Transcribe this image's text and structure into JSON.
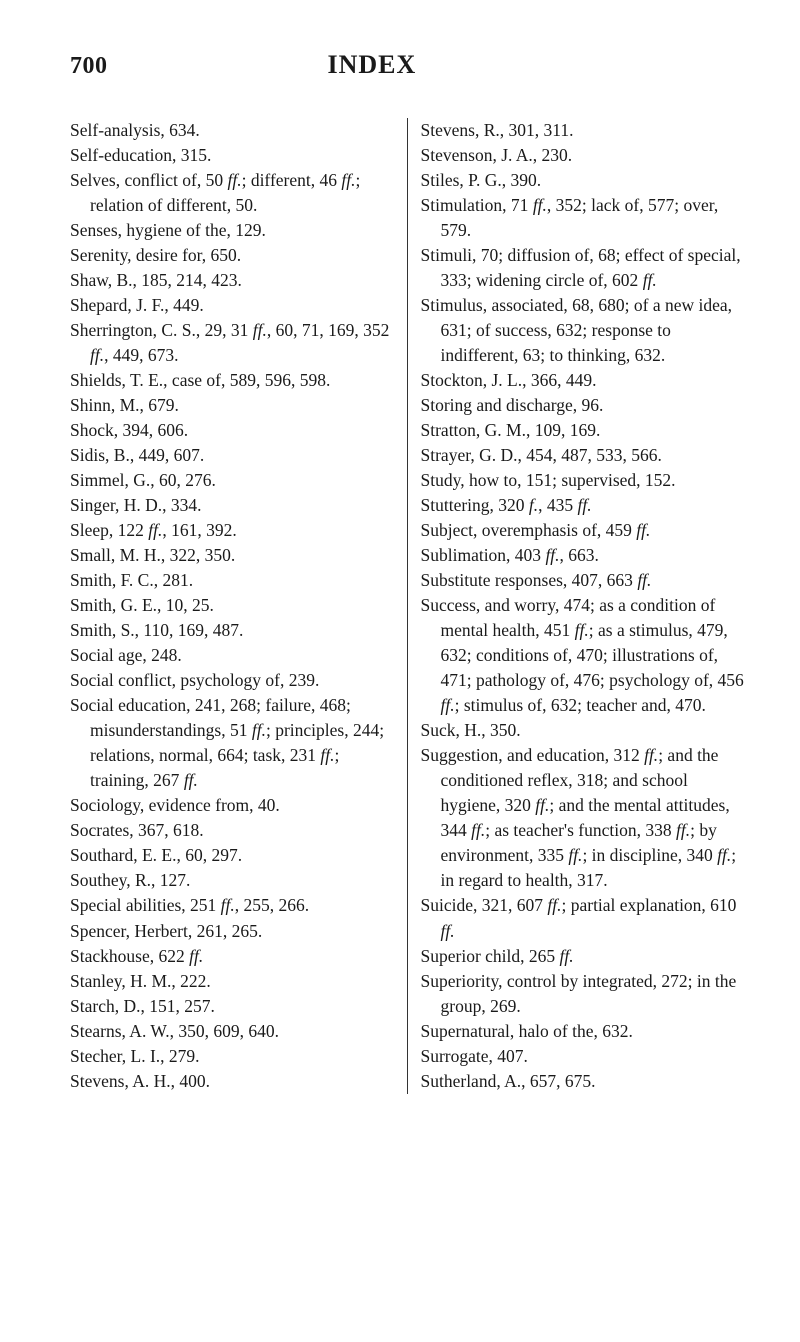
{
  "header": {
    "pageNumber": "700",
    "title": "INDEX"
  },
  "entries": [
    "Self-analysis, 634.",
    "Self-education, 315.",
    "Selves, conflict of, 50 <i>ff.</i>; different, 46 <i>ff.</i>; relation of different, 50.",
    "Senses, hygiene of the, 129.",
    "Serenity, desire for, 650.",
    "Shaw, B., 185, 214, 423.",
    "Shepard, J. F., 449.",
    "Sherrington, C. S., 29, 31 <i>ff.</i>, 60, 71, 169, 352 <i>ff.</i>, 449, 673.",
    "Shields, T. E., case of, 589, 596, 598.",
    "Shinn, M., 679.",
    "Shock, 394, 606.",
    "Sidis, B., 449, 607.",
    "Simmel, G., 60, 276.",
    "Singer, H. D., 334.",
    "Sleep, 122 <i>ff.</i>, 161, 392.",
    "Small, M. H., 322, 350.",
    "Smith, F. C., 281.",
    "Smith, G. E., 10, 25.",
    "Smith, S., 110, 169, 487.",
    "Social age, 248.",
    "Social conflict, psychology of, 239.",
    "Social education, 241, 268; failure, 468; misunderstandings, 51 <i>ff.</i>; principles, 244; relations, normal, 664; task, 231 <i>ff.</i>; training, 267 <i>ff.</i>",
    "Sociology, evidence from, 40.",
    "Socrates, 367, 618.",
    "Southard, E. E., 60, 297.",
    "Southey, R., 127.",
    "Special abilities, 251 <i>ff.</i>, 255, 266.",
    "Spencer, Herbert, 261, 265.",
    "Stackhouse, 622 <i>ff.</i>",
    "Stanley, H. M., 222.",
    "Starch, D., 151, 257.",
    "Stearns, A. W., 350, 609, 640.",
    "Stecher, L. I., 279.",
    "Stevens, A. H., 400.",
    "Stevens, R., 301, 311.",
    "Stevenson, J. A., 230.",
    "Stiles, P. G., 390.",
    "Stimulation, 71 <i>ff.</i>, 352; lack of, 577; over, 579.",
    "Stimuli, 70; diffusion of, 68; effect of special, 333; widening circle of, 602 <i>ff.</i>",
    "Stimulus, associated, 68, 680; of a new idea, 631; of success, 632; response to indifferent, 63; to thinking, 632.",
    "Stockton, J. L., 366, 449.",
    "Storing and discharge, 96.",
    "Stratton, G. M., 109, 169.",
    "Strayer, G. D., 454, 487, 533, 566.",
    "Study, how to, 151; supervised, 152.",
    "Stuttering, 320 <i>f.</i>, 435 <i>ff.</i>",
    "Subject, overemphasis of, 459 <i>ff.</i>",
    "Sublimation, 403 <i>ff.</i>, 663.",
    "Substitute responses, 407, 663 <i>ff.</i>",
    "Success, and worry, 474; as a condition of mental health, 451 <i>ff.</i>; as a stimulus, 479, 632; conditions of, 470; illustrations of, 471; pathology of, 476; psychology of, 456 <i>ff.</i>; stimulus of, 632; teacher and, 470.",
    "Suck, H., 350.",
    "Suggestion, and education, 312 <i>ff.</i>; and the conditioned reflex, 318; and school hygiene, 320 <i>ff.</i>; and the mental attitudes, 344 <i>ff.</i>; as teacher's function, 338 <i>ff.</i>; by environment, 335 <i>ff.</i>; in discipline, 340 <i>ff.</i>; in regard to health, 317.",
    "Suicide, 321, 607 <i>ff.</i>; partial explanation, 610 <i>ff.</i>",
    "Superior child, 265 <i>ff.</i>",
    "Superiority, control by integrated, 272; in the group, 269.",
    "Supernatural, halo of the, 632.",
    "Surrogate, 407.",
    "Sutherland, A., 657, 675."
  ]
}
